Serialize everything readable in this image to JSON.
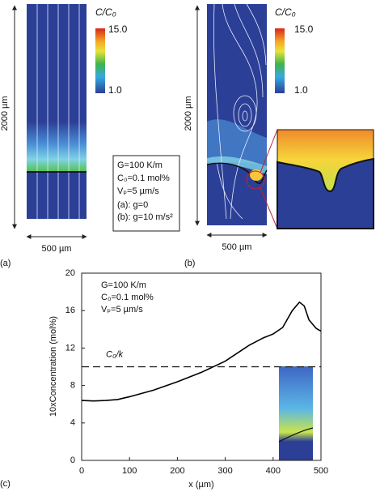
{
  "panel_a": {
    "label": "(a)",
    "height_label": "2000 µm",
    "width_label": "500 µm",
    "colorbar": {
      "title": "C/C₀",
      "max": "15.0",
      "min": "1.0"
    }
  },
  "conditions": [
    "G=100 K/m",
    "C₀=0.1 mol%",
    "Vₚ=5 µm/s",
    "(a): g=0",
    "(b): g=10 m/s²"
  ],
  "panel_b": {
    "label": "(b)",
    "height_label": "2000 µm",
    "width_label": "500 µm",
    "colorbar": {
      "title": "C/C₀",
      "max": "15.0",
      "min": "1.0"
    }
  },
  "chart_data": {
    "type": "line",
    "panel_label": "(c)",
    "x_label": "x (µm)",
    "y_label": "10xConcentration (mol%)",
    "annotations": [
      "G=100 K/m",
      "C₀=0.1 mol%",
      "Vₚ=5 µm/s"
    ],
    "reference_line": {
      "value": 10,
      "label": "C₀/k"
    },
    "x": [
      0,
      25,
      50,
      75,
      100,
      150,
      200,
      250,
      300,
      350,
      380,
      400,
      420,
      440,
      455,
      465,
      475,
      490,
      500
    ],
    "series": [
      {
        "color": "#000000",
        "values": [
          6.4,
          6.35,
          6.4,
          6.5,
          6.8,
          7.5,
          8.4,
          9.4,
          10.6,
          12.3,
          13.1,
          13.5,
          14.2,
          16.0,
          16.9,
          16.5,
          15.0,
          14.1,
          13.8
        ]
      }
    ],
    "xlim": [
      0,
      500
    ],
    "xticks": [
      0,
      100,
      200,
      300,
      400,
      500
    ],
    "ylim": [
      0,
      20
    ],
    "yticks": [
      0,
      4,
      8,
      12,
      16,
      20
    ]
  }
}
